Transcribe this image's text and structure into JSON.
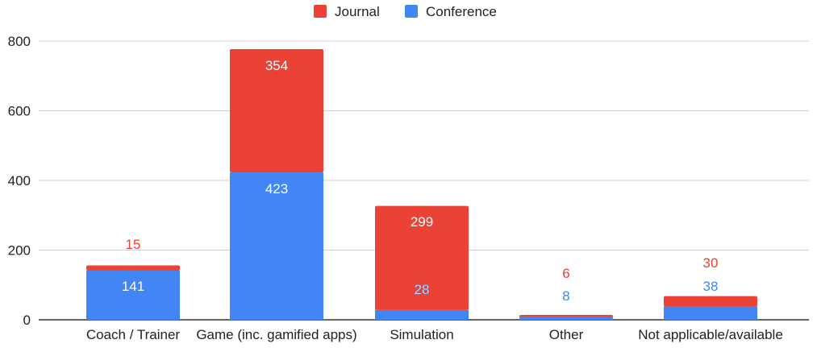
{
  "chart_data": {
    "type": "bar",
    "stacked": true,
    "categories": [
      "Coach / Trainer",
      "Game (inc. gamified apps)",
      "Simulation",
      "Other",
      "Not applicable/available"
    ],
    "series": [
      {
        "name": "Conference",
        "color": "#4285f4",
        "values": [
          141,
          423,
          28,
          8,
          38
        ]
      },
      {
        "name": "Journal",
        "color": "#ea4335",
        "values": [
          15,
          354,
          299,
          6,
          30
        ]
      }
    ],
    "legend_order": [
      "Journal",
      "Conference"
    ],
    "legend_position": "top-center",
    "ylim": [
      0,
      800
    ],
    "yticks": [
      "0",
      "200",
      "400",
      "600",
      "800"
    ],
    "grid": true,
    "xlabel": "",
    "ylabel": "",
    "title": ""
  }
}
